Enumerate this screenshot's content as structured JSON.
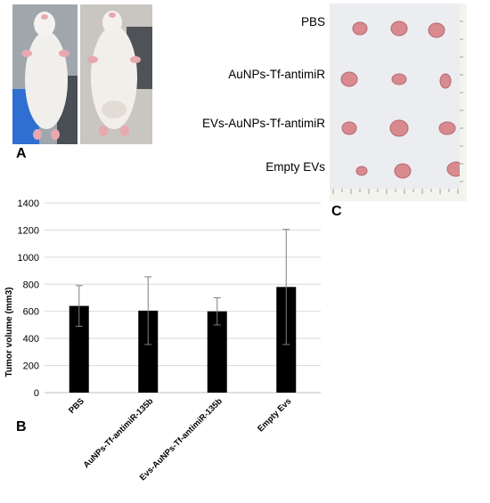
{
  "panels": {
    "a": {
      "letter": "A"
    },
    "b": {
      "letter": "B"
    },
    "c": {
      "letter": "C",
      "groups": [
        "PBS",
        "AuNPs-Tf-antimiR",
        "EVs-AuNPs-Tf-antimiR",
        "Empty EVs"
      ]
    }
  },
  "colors": {
    "bar": "#000000",
    "grid": "#d9d9d9",
    "board": "#ecedf1",
    "tumor": "#d98a8e"
  },
  "chart_data": {
    "type": "bar",
    "categories": [
      "PBS",
      "AuNPs-Tf-antimiR-135b",
      "Evs-AuNPs-Tf-antimiR-135b",
      "Empty Evs"
    ],
    "values": [
      640,
      605,
      600,
      780
    ],
    "error_low": [
      490,
      355,
      500,
      355
    ],
    "error_high": [
      790,
      855,
      700,
      1205
    ],
    "ylabel": "Tumor volume (mm3)",
    "xlabel": "",
    "ylim": [
      0,
      1400
    ],
    "yticks": [
      0,
      200,
      400,
      600,
      800,
      1000,
      1200,
      1400
    ],
    "grid": true,
    "legend": "none"
  }
}
